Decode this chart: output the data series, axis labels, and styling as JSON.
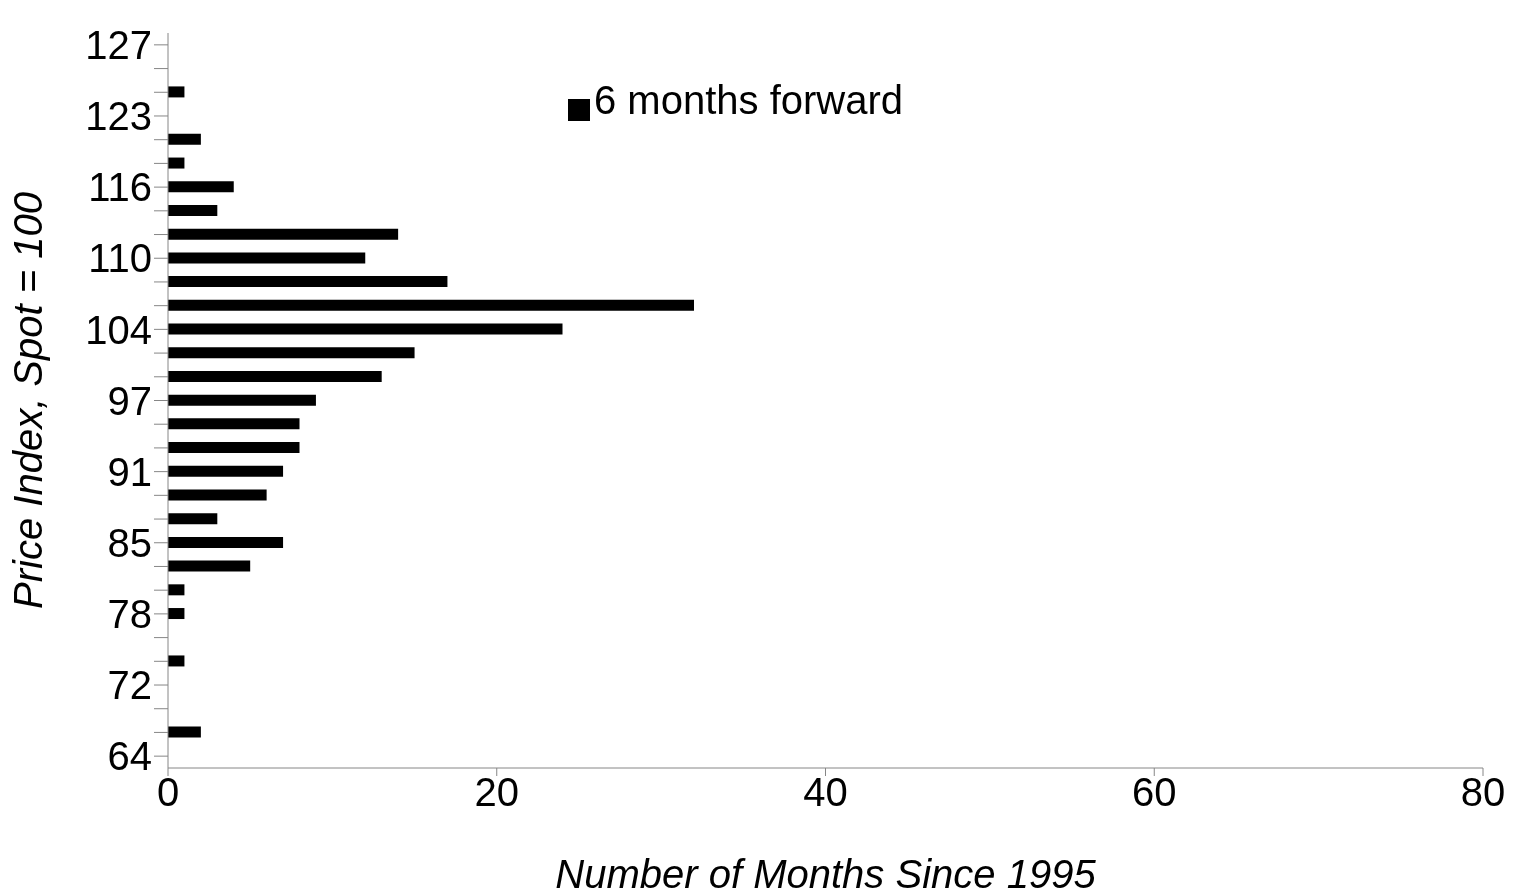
{
  "chart_data": {
    "type": "bar",
    "orientation": "horizontal",
    "xlabel": "Number of Months Since 1995",
    "ylabel": "Price Index, Spot = 100",
    "categories": [
      "127",
      null,
      null,
      "123",
      null,
      null,
      "116",
      null,
      null,
      "110",
      null,
      null,
      "104",
      null,
      null,
      "97",
      null,
      null,
      "91",
      null,
      null,
      "85",
      null,
      null,
      "78",
      null,
      null,
      "72",
      null,
      null,
      "64"
    ],
    "series": [
      {
        "name": "6 months forward",
        "color": "#000000",
        "values": [
          0,
          0,
          1,
          0,
          2,
          1,
          4,
          3,
          14,
          12,
          17,
          32,
          24,
          15,
          13,
          9,
          8,
          8,
          7,
          6,
          3,
          7,
          5,
          1,
          1,
          0,
          1,
          0,
          0,
          2,
          0
        ]
      }
    ],
    "xlim": [
      0,
      80
    ],
    "xticks": [
      0,
      20,
      40,
      60,
      80
    ],
    "grid": false,
    "legend": "top"
  }
}
